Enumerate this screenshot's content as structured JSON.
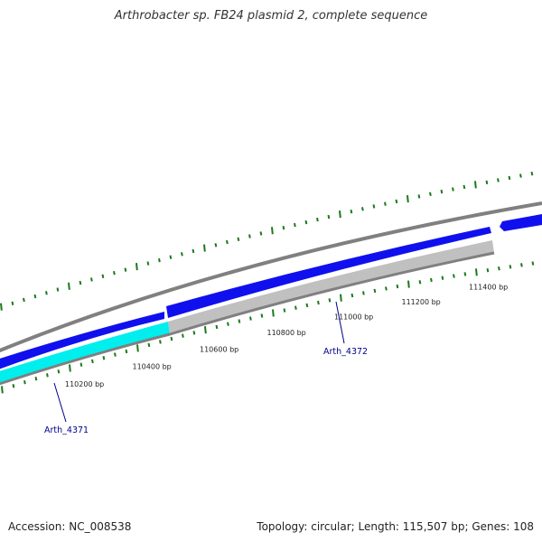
{
  "title": "Arthrobacter sp. FB24 plasmid 2, complete sequence",
  "footer": {
    "accession": "Accession: NC_008538",
    "summary": "Topology: circular; Length: 115,507 bp; Genes: 108"
  },
  "colors": {
    "backbone": "#808080",
    "gene_blue": "#1010ee",
    "gene_cyan": "#00eeee",
    "gene_gray": "#c0c0c0",
    "tick": "#1a7a1a",
    "gene_label": "#00008b"
  },
  "scale": {
    "tick_labels": [
      {
        "bp": 110200,
        "label": "110200 bp"
      },
      {
        "bp": 110400,
        "label": "110400 bp"
      },
      {
        "bp": 110600,
        "label": "110600 bp"
      },
      {
        "bp": 110800,
        "label": "110800 bp"
      },
      {
        "bp": 111000,
        "label": "111000 bp"
      },
      {
        "bp": 111200,
        "label": "111200 bp"
      },
      {
        "bp": 111400,
        "label": "111400 bp"
      }
    ]
  },
  "genes": [
    {
      "name": "",
      "strand": "forward",
      "color": "blue"
    },
    {
      "name": "",
      "strand": "forward",
      "color": "blue"
    },
    {
      "name": "",
      "strand": "reverse",
      "color": "blue"
    },
    {
      "name": "Arth_4371",
      "strand": "inner",
      "color": "cyan"
    },
    {
      "name": "Arth_4372",
      "strand": "inner",
      "color": "gray"
    }
  ]
}
